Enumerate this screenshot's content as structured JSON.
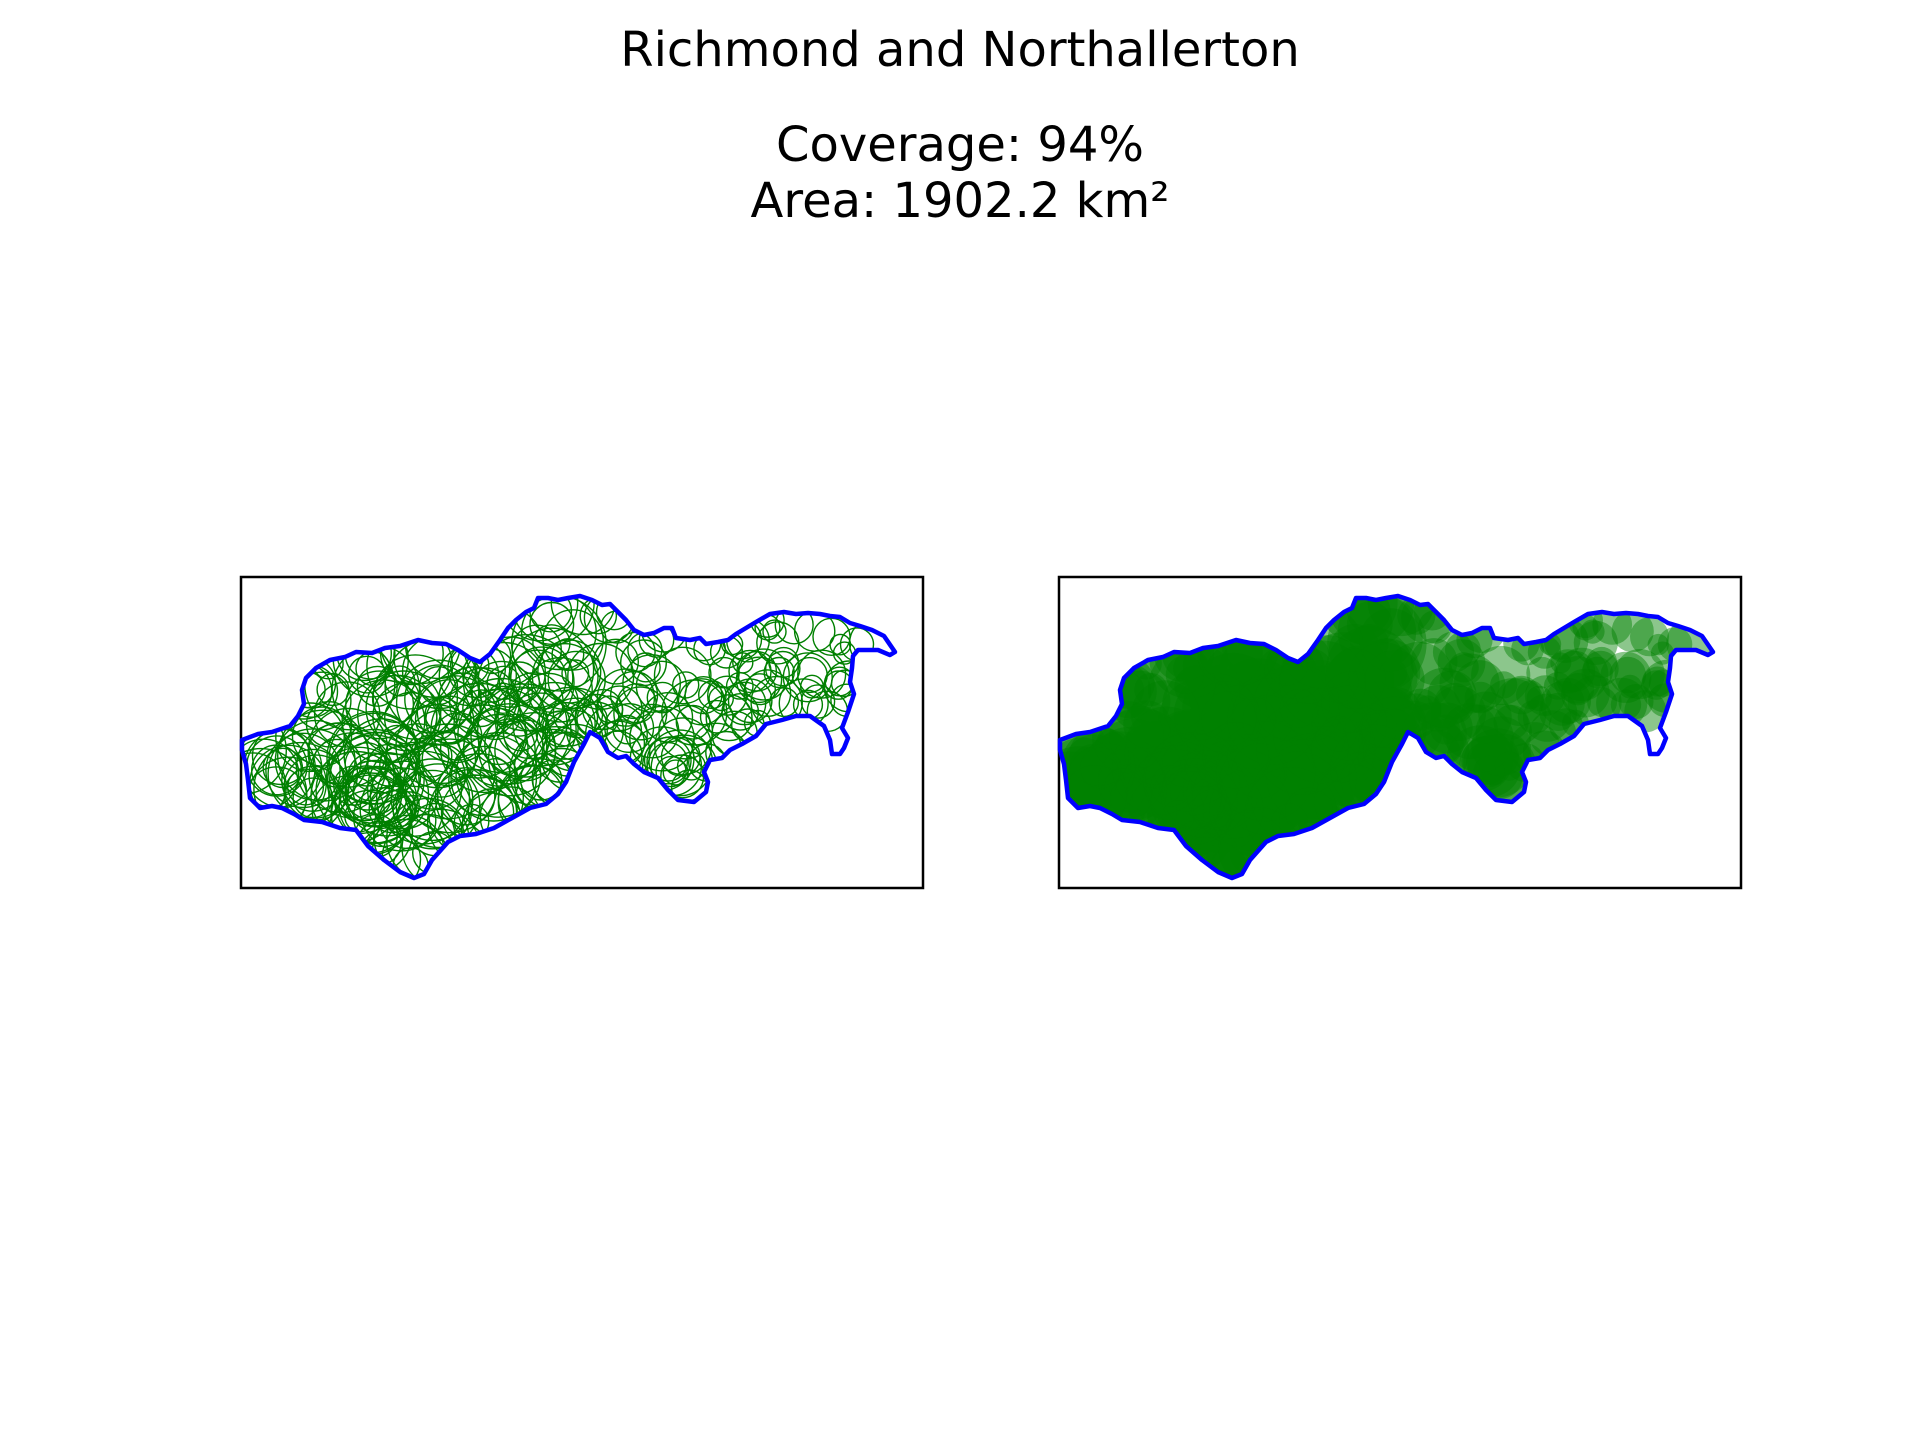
{
  "figure": {
    "title": "Richmond and Northallerton",
    "coverage_text": "Coverage: 94%",
    "area_text": "Area: 1902.2 km²"
  },
  "colors": {
    "boundary": "#0000ff",
    "circle": "#008000",
    "frame": "#000000",
    "background": "#ffffff"
  },
  "panels": [
    {
      "name": "circle-outlines",
      "style": "outline"
    },
    {
      "name": "circle-filled",
      "style": "filled"
    }
  ]
}
